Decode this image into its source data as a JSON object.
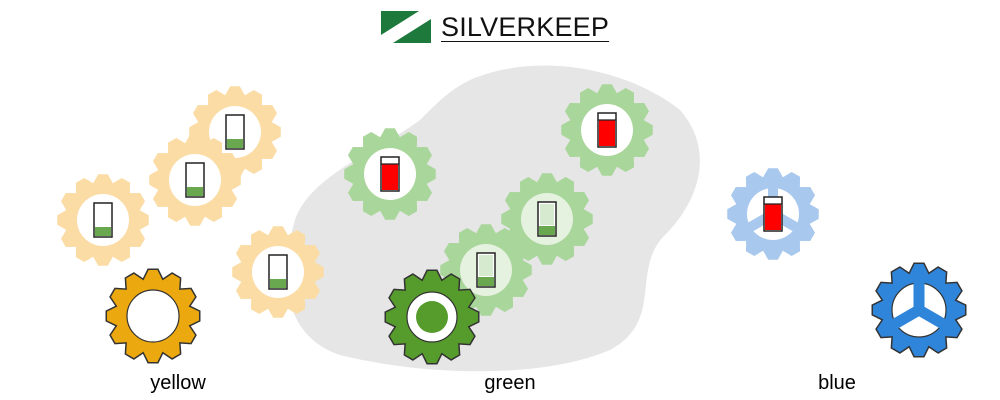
{
  "header": {
    "brand": "SILVERKEEP",
    "logo_icon": "green-banner-logo-icon"
  },
  "colors": {
    "yellow_light": "#fbdca5",
    "yellow_dark": "#eca80f",
    "green_light": "#a9d69a",
    "green_dark": "#569c2c",
    "blue_light": "#a8c8ee",
    "blue_dark": "#2f85d9",
    "battery_low": "#6aa84f",
    "battery_high": "#ff0000",
    "battery_pale": "#d6ead0",
    "blob": "#e6e6e6"
  },
  "groups": [
    {
      "label": "yellow",
      "hub": {
        "style": "ring",
        "color": "yellow_dark"
      },
      "members": [
        {
          "battery": "low"
        },
        {
          "battery": "low"
        },
        {
          "battery": "low"
        },
        {
          "battery": "low"
        }
      ]
    },
    {
      "label": "green",
      "hub": {
        "style": "dot",
        "color": "green_dark"
      },
      "members": [
        {
          "battery": "high"
        },
        {
          "battery": "high"
        },
        {
          "battery": "pale"
        },
        {
          "battery": "pale"
        }
      ]
    },
    {
      "label": "blue",
      "hub": {
        "style": "spokes",
        "color": "blue_dark"
      },
      "members": [
        {
          "battery": "high"
        }
      ]
    }
  ]
}
